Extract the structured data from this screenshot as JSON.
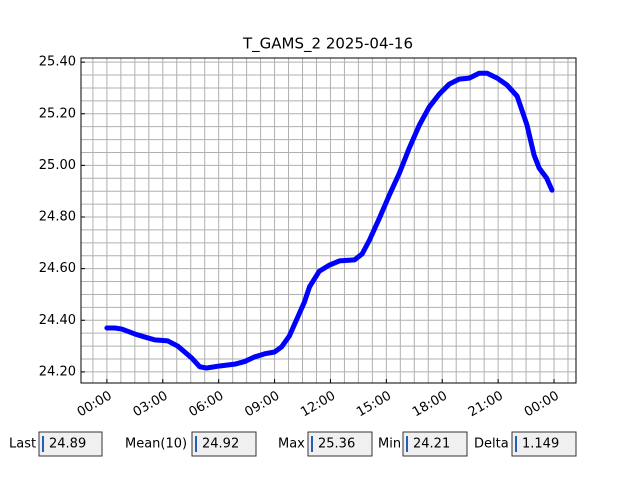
{
  "chart_data": {
    "type": "line",
    "title": "T_GAMS_2 2025-04-16",
    "x": [
      0,
      0.43,
      0.8,
      1.5,
      2.04,
      2.57,
      3.27,
      3.8,
      4.18,
      4.55,
      4.98,
      5.36,
      6.05,
      6.86,
      7.39,
      7.93,
      8.46,
      9.0,
      9.38,
      9.8,
      10.34,
      10.6,
      10.88,
      11.4,
      11.95,
      12.48,
      13.29,
      13.7,
      14.09,
      14.63,
      15.16,
      15.7,
      16.23,
      16.77,
      17.3,
      17.84,
      18.38,
      18.91,
      19.45,
      19.98,
      20.41,
      20.95,
      21.48,
      22.02,
      22.55,
      22.93,
      23.2,
      23.6,
      23.89
    ],
    "series": [
      {
        "name": "T_GAMS_2",
        "color": "#0000ff",
        "values": [
          24.37,
          24.37,
          24.366,
          24.347,
          24.335,
          24.324,
          24.32,
          24.3,
          24.277,
          24.254,
          24.22,
          24.215,
          24.223,
          24.23,
          24.24,
          24.258,
          24.27,
          24.277,
          24.297,
          24.34,
          24.428,
          24.47,
          24.53,
          24.59,
          24.614,
          24.63,
          24.634,
          24.657,
          24.71,
          24.796,
          24.885,
          24.97,
          25.067,
          25.156,
          25.226,
          25.276,
          25.315,
          25.334,
          25.338,
          25.357,
          25.357,
          25.338,
          25.311,
          25.268,
          25.156,
          25.04,
          24.99,
          24.951,
          24.904
        ]
      }
    ],
    "xlim": [
      -1.39,
      25.18
    ],
    "xticks": [
      {
        "value": 0,
        "label": "00:00"
      },
      {
        "value": 3,
        "label": "03:00"
      },
      {
        "value": 6,
        "label": "06:00"
      },
      {
        "value": 9,
        "label": "09:00"
      },
      {
        "value": 12,
        "label": "12:00"
      },
      {
        "value": 15,
        "label": "15:00"
      },
      {
        "value": 18,
        "label": "18:00"
      },
      {
        "value": 21,
        "label": "21:00"
      },
      {
        "value": 24,
        "label": "00:00"
      }
    ],
    "xminorticks": [
      -0.75,
      0,
      0.75,
      1.5,
      2.25,
      3,
      3.75,
      4.5,
      5.25,
      6,
      6.75,
      7.5,
      8.25,
      9,
      9.75,
      10.5,
      11.25,
      12,
      12.75,
      13.5,
      14.25,
      15,
      15.75,
      16.5,
      17.25,
      18,
      18.75,
      19.5,
      20.25,
      21,
      21.75,
      22.5,
      23.25,
      24,
      24.75
    ],
    "ylim": [
      24.157,
      25.416
    ],
    "yticks": [
      {
        "value": 24.2,
        "label": "24.20"
      },
      {
        "value": 24.4,
        "label": "24.40"
      },
      {
        "value": 24.6,
        "label": "24.60"
      },
      {
        "value": 24.8,
        "label": "24.80"
      },
      {
        "value": 25.0,
        "label": "25.00"
      },
      {
        "value": 25.2,
        "label": "25.20"
      },
      {
        "value": 25.4,
        "label": "25.40"
      }
    ],
    "yminorticks": [
      24.2,
      24.25,
      24.3,
      24.35,
      24.4,
      24.45,
      24.5,
      24.55,
      24.6,
      24.65,
      24.7,
      24.75,
      24.8,
      24.85,
      24.9,
      24.95,
      25.0,
      25.05,
      25.1,
      25.15,
      25.2,
      25.25,
      25.3,
      25.35,
      25.4
    ],
    "grid": true
  },
  "stats": [
    {
      "label": "Last",
      "value": "24.89"
    },
    {
      "label": "Mean(10)",
      "value": "24.92"
    },
    {
      "label": "Max",
      "value": "25.36"
    },
    {
      "label": "Min",
      "value": "24.21"
    },
    {
      "label": "Delta",
      "value": "1.149"
    }
  ]
}
